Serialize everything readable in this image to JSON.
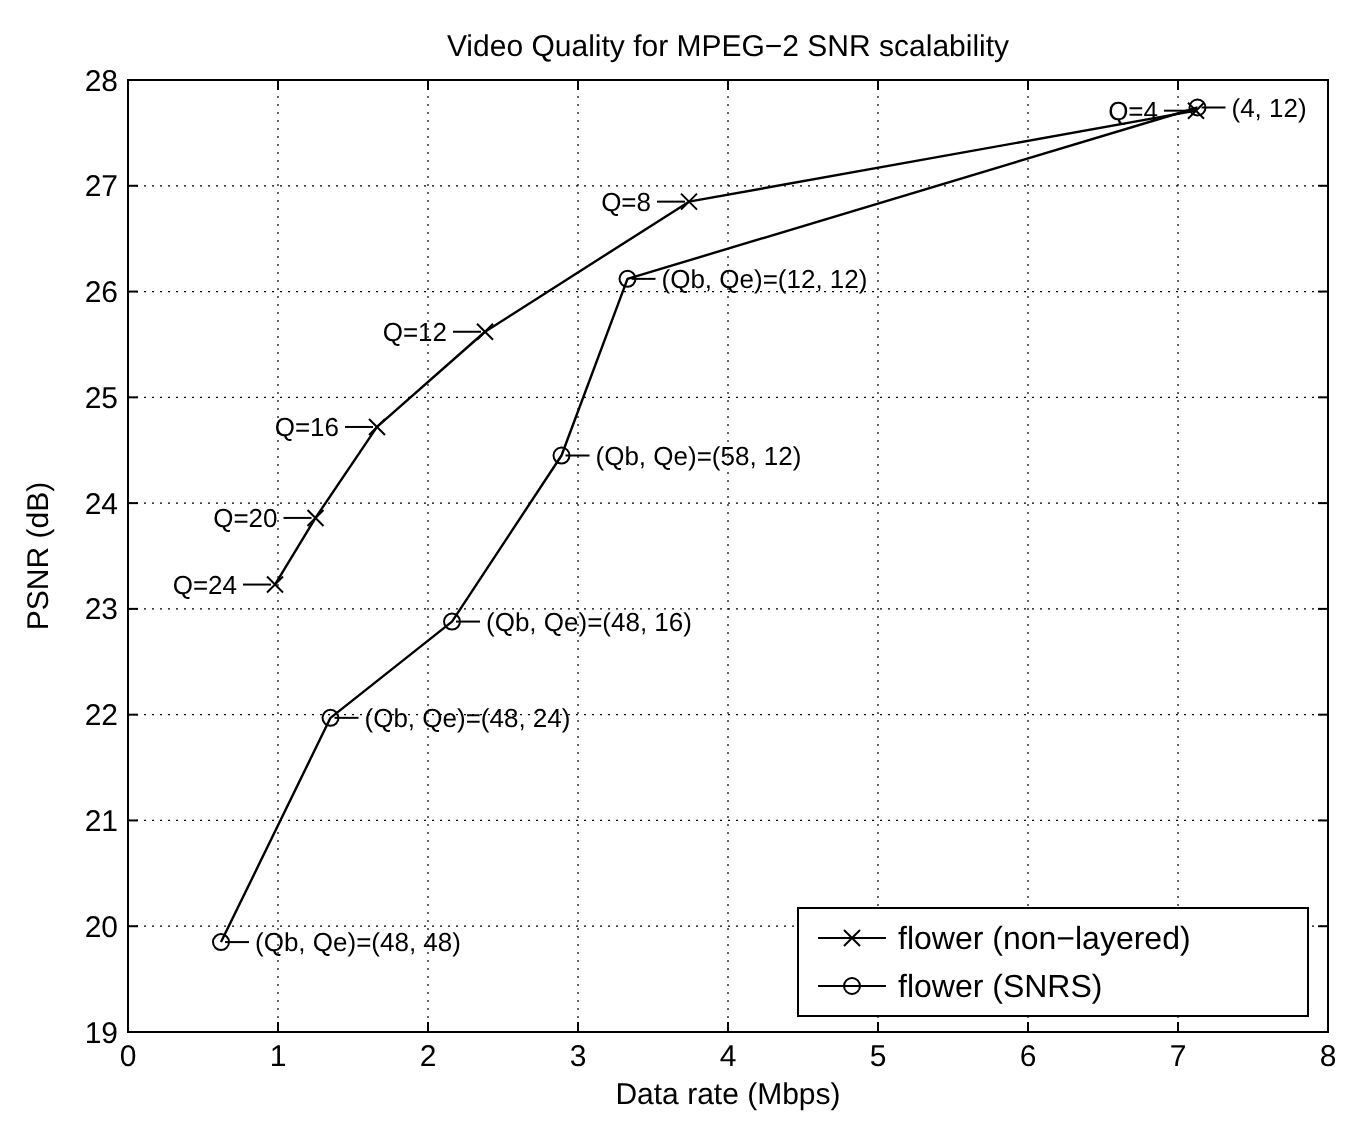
{
  "chart_data": {
    "type": "line",
    "title": "Video Quality for MPEG−2 SNR scalability",
    "xlabel": "Data rate (Mbps)",
    "ylabel": "PSNR (dB)",
    "xlim": [
      0,
      8
    ],
    "xticks": [
      0,
      1,
      2,
      3,
      4,
      5,
      6,
      7,
      8
    ],
    "ylim": [
      19,
      28
    ],
    "yticks": [
      19,
      20,
      21,
      22,
      23,
      24,
      25,
      26,
      27,
      28
    ],
    "grid": true,
    "legend": "bottom right",
    "line_style": "solid",
    "series": [
      {
        "name": "flower (non−layered)",
        "color": "#000000",
        "marker": "cross",
        "x": [
          0.98,
          1.25,
          1.66,
          2.38,
          3.74,
          7.12
        ],
        "values": [
          23.23,
          23.86,
          24.72,
          25.62,
          26.85,
          27.71
        ]
      },
      {
        "name": "flower (SNRS)",
        "color": "#000000",
        "marker": "circle",
        "x": [
          0.62,
          1.35,
          2.16,
          2.89,
          3.33,
          7.13
        ],
        "values": [
          19.85,
          21.97,
          22.88,
          24.45,
          26.12,
          27.74
        ]
      }
    ],
    "annotations": [
      {
        "text": "Q=24",
        "x": 0.98,
        "y": 23.23
      },
      {
        "text": "Q=20",
        "x": 1.25,
        "y": 23.86
      },
      {
        "text": "Q=16",
        "x": 1.66,
        "y": 24.72
      },
      {
        "text": "Q=12",
        "x": 2.38,
        "y": 25.62
      },
      {
        "text": "Q=8",
        "x": 3.74,
        "y": 26.85
      },
      {
        "text": "Q=4",
        "x": 7.12,
        "y": 27.71
      },
      {
        "text": "(Qb, Qe)=(48, 48)",
        "x": 0.62,
        "y": 19.85
      },
      {
        "text": "(Qb, Qe)=(48, 24)",
        "x": 1.35,
        "y": 21.97
      },
      {
        "text": "(Qb, Qe)=(48, 16)",
        "x": 2.16,
        "y": 22.88
      },
      {
        "text": "(Qb, Qe)=(58, 12)",
        "x": 2.89,
        "y": 24.45
      },
      {
        "text": "(Qb, Qe)=(12, 12)",
        "x": 3.33,
        "y": 26.12
      },
      {
        "text": "(4, 12)",
        "x": 7.13,
        "y": 27.74
      }
    ]
  }
}
